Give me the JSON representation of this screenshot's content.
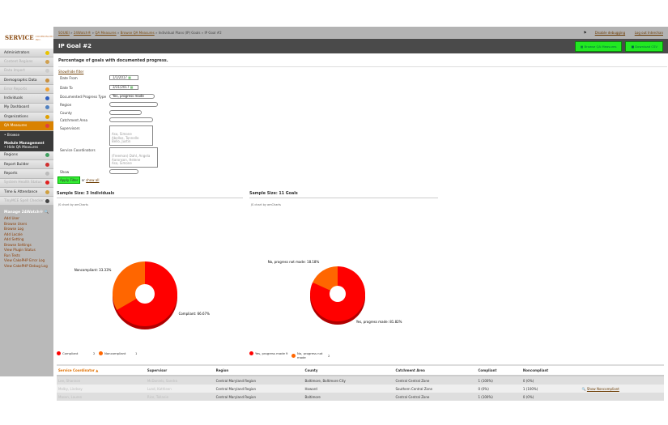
{
  "logo": {
    "text": "SERVICE",
    "sub": "COORDINATION, INC."
  },
  "breadcrumb": [
    "SOUtEl",
    "24Watch®",
    "QA Measures",
    "Browse QA Measures",
    "Individual Plans (IP) Goals",
    "IP Goal #2"
  ],
  "toplinks": {
    "disable": "Disable debugging",
    "logout": "Log out Interchan"
  },
  "title": "IP Goal #2",
  "buttons": {
    "browse": "Browse QA Measures",
    "csv": "Download CSV",
    "apply": "Apply Filter"
  },
  "sidebar": {
    "items": [
      {
        "label": "Administrators",
        "color": "#e8c400"
      },
      {
        "label": "Content Regions",
        "dim": true,
        "color": "#d0a050"
      },
      {
        "label": "Data Import",
        "dim": true,
        "color": "#ccc"
      },
      {
        "label": "Demographic Data",
        "color": "#c89040"
      },
      {
        "label": "Error Reports",
        "dim": true,
        "color": "#f0a030"
      },
      {
        "label": "Individuals",
        "color": "#3060c0"
      },
      {
        "label": "My Dashboard",
        "color": "#5080c0"
      },
      {
        "label": "Organizations",
        "color": "#e0a000"
      },
      {
        "label": "QA Measures",
        "active": true,
        "color": "#e04040"
      }
    ],
    "sub": {
      "browse": "Browse",
      "module": "Module Management",
      "hide": "Hide QA Measures"
    },
    "items2": [
      {
        "label": "Regions",
        "color": "#40a060"
      },
      {
        "label": "Report Builder",
        "color": "#d03030"
      },
      {
        "label": "Reports",
        "color": "#bbb"
      },
      {
        "label": "System Health Status",
        "dim": true,
        "color": "#e02020"
      },
      {
        "label": "Time & Attendance",
        "color": "#d0a040"
      },
      {
        "label": "TinyMCE Spell Checker",
        "dim": true,
        "color": "#444"
      }
    ],
    "manage": "Manage 24Watch®",
    "links": [
      "Add User",
      "Browse Users",
      "Browse Log",
      "Add Locale",
      "Add Setting",
      "Browse Settings",
      "View Plugin Status",
      "Run Tests",
      "View CakePHP Error Log",
      "View CakePHP Debug Log"
    ]
  },
  "main": {
    "subtitle": "Percentage of goals with documented progress.",
    "showhide": "Show/hide filter",
    "or": "or",
    "showall": "show all",
    "filter": {
      "date_from": "Date From",
      "date_from_val": "1/1/2017",
      "date_to": "Date To",
      "date_to_val": "3/31/2017",
      "type": "Documented Progress Type",
      "type_val": "Yes, progress made",
      "region": "Region",
      "county": "County",
      "catchment": "Catchment Area",
      "supervisors": "Supervisors",
      "supervisors_list": [
        "Aso, Simone",
        "Abellos, Tonnelle",
        "Bello, Justin"
      ],
      "coordinators": "Service Coordinators",
      "coordinators_list": [
        "(Freeman) Dahl, Angela",
        "Aaronson, Helene",
        "Aso, Simone"
      ],
      "show": "Show"
    }
  },
  "chart_data": [
    {
      "type": "pie",
      "title": "Sample Size: 3 Individuals",
      "credit": "JS chart by amCharts",
      "slices": [
        {
          "label": "Compliant",
          "value": 2,
          "pct": "66.67%",
          "color": "#ff0000"
        },
        {
          "label": "Noncompliant",
          "value": 1,
          "pct": "33.33%",
          "color": "#ff6600"
        }
      ]
    },
    {
      "type": "pie",
      "title": "Sample Size: 11 Goals",
      "credit": "JS chart by amCharts",
      "slices": [
        {
          "label": "Yes, progress made",
          "value": 9,
          "pct": "81.82%",
          "color": "#ff0000"
        },
        {
          "label": "No, progress not made",
          "value": 2,
          "pct": "18.18%",
          "color": "#ff6600"
        }
      ]
    }
  ],
  "table": {
    "headers": [
      "Service Coordinator ▲",
      "Supervisor",
      "Region",
      "County",
      "Catchment Area",
      "Compliant",
      "Noncompliant",
      ""
    ],
    "rows": [
      [
        "Lee, Shannon",
        "McDaniels, Sandra",
        "Central Maryland Region",
        "Baltimore, Baltimore City",
        "Central Central Zone",
        "1 (100%)",
        "0 (0%)",
        ""
      ],
      [
        "Melby, Lindsey",
        "Lund, Kathleen",
        "Central Maryland Region",
        "Howard",
        "Southern Central Zone",
        "0 (0%)",
        "1 (100%)",
        "Show Noncompliant"
      ],
      [
        "Mason, Lauren",
        "Rice, Tollanie",
        "Central Maryland Region",
        "Baltimore",
        "Central Central Zone",
        "1 (100%)",
        "0 (0%)",
        ""
      ]
    ]
  }
}
